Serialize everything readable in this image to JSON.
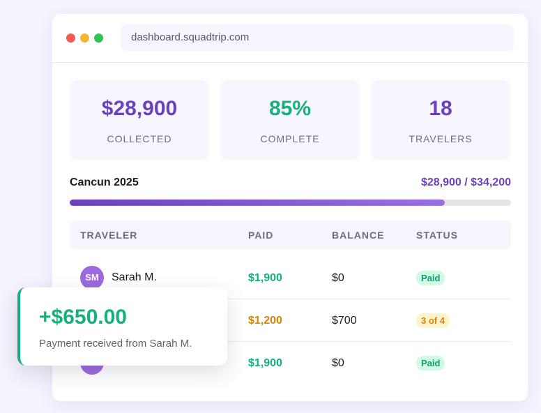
{
  "browser": {
    "url": "dashboard.squadtrip.com"
  },
  "stats": [
    {
      "value": "$28,900",
      "label": "COLLECTED"
    },
    {
      "value": "85%",
      "label": "COMPLETE"
    },
    {
      "value": "18",
      "label": "TRAVELERS"
    }
  ],
  "trip": {
    "name": "Cancun 2025",
    "amount": "$28,900 / $34,200",
    "progress_percent": 85
  },
  "table": {
    "headers": [
      "TRAVELER",
      "PAID",
      "BALANCE",
      "STATUS"
    ],
    "rows": [
      {
        "initials": "SM",
        "name": "Sarah M.",
        "paid": "$1,900",
        "balance": "$0",
        "status": "Paid"
      },
      {
        "paid": "$1,200",
        "balance": "$700",
        "status": "3 of 4"
      },
      {
        "paid": "$1,900",
        "balance": "$0",
        "status": "Paid"
      }
    ]
  },
  "toast": {
    "amount": "+$650.00",
    "message": "Payment received from Sarah M."
  }
}
